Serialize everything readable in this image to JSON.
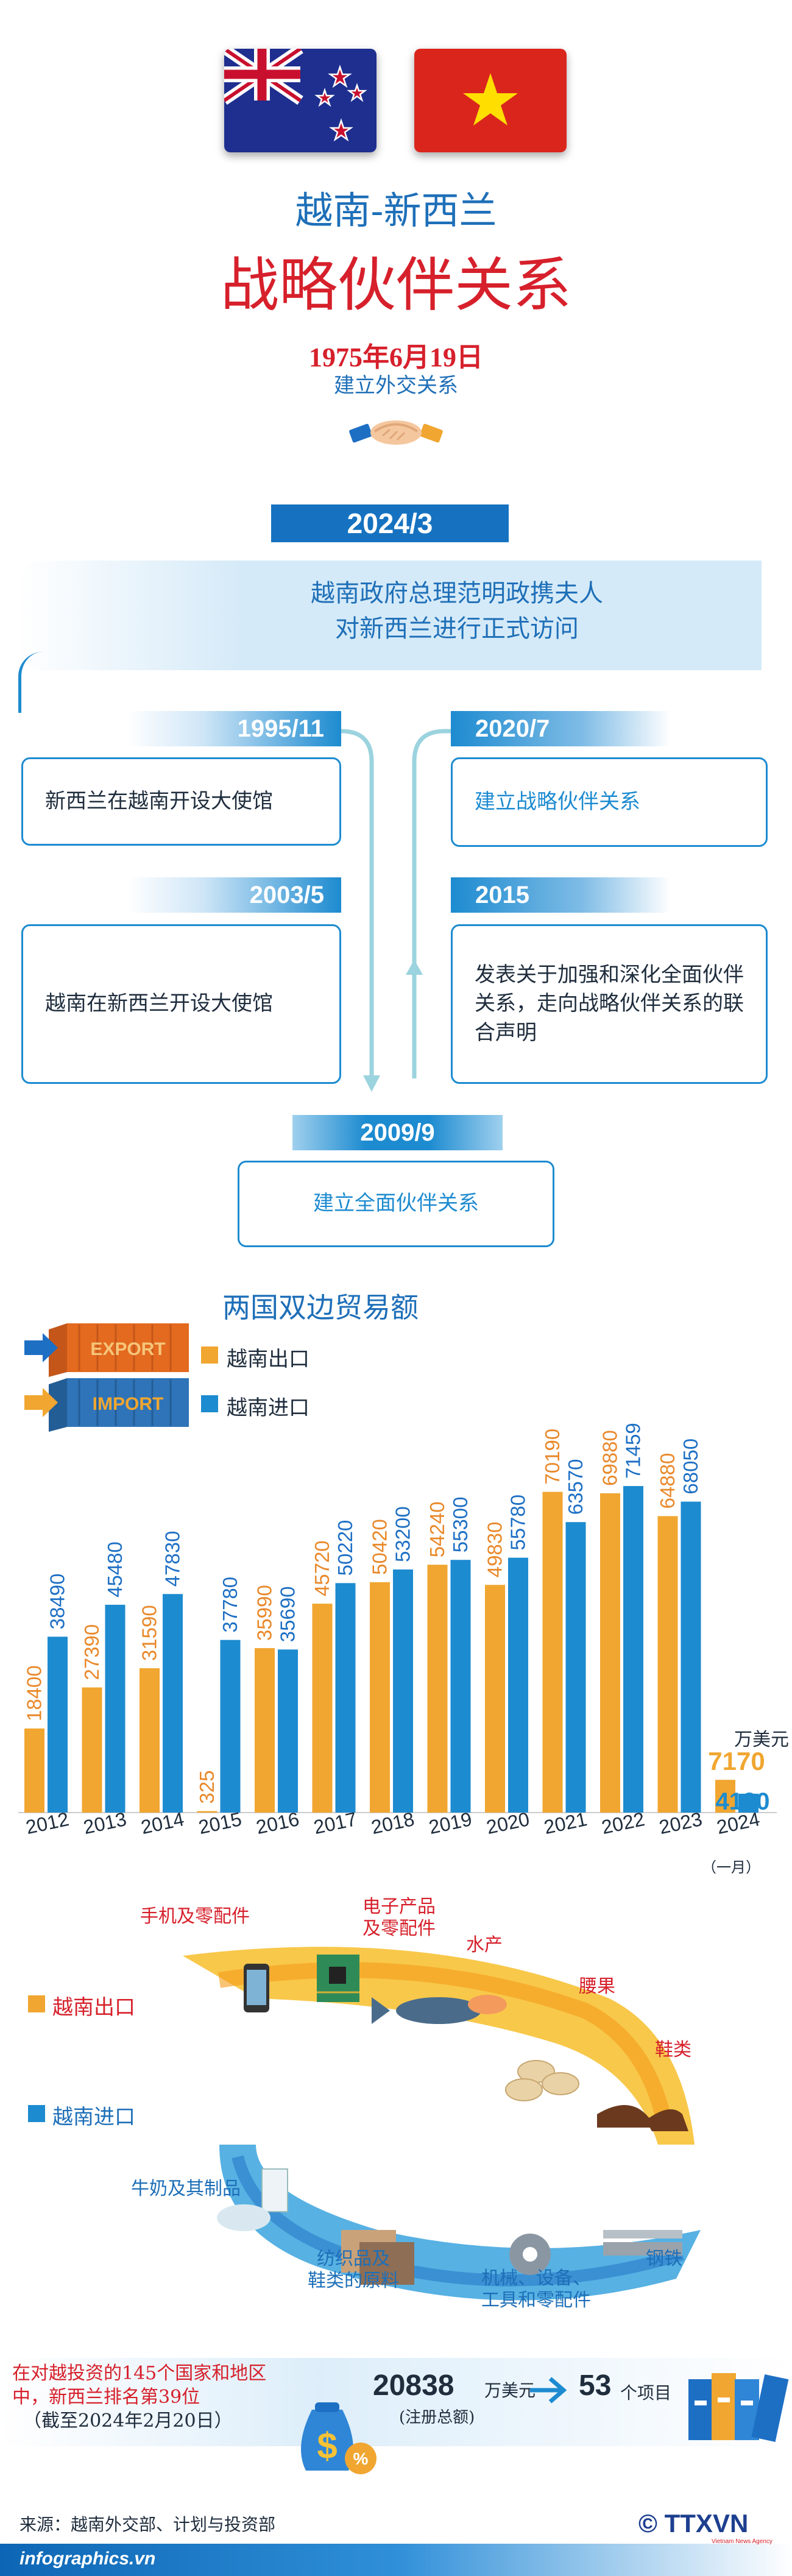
{
  "header": {
    "title_line1": "越南-新西兰",
    "title_line2": "战略伙伴关系",
    "date": "1975年6月19日",
    "date_sub": "建立外交关系"
  },
  "visit": {
    "year": "2024/3",
    "text_line1": "越南政府总理范明政携夫人",
    "text_line2": "对新西兰进行正式访问"
  },
  "timeline": [
    {
      "year": "1995/11",
      "text": "新西兰在越南开设大使馆"
    },
    {
      "year": "2003/5",
      "text": "越南在新西兰开设大使馆"
    },
    {
      "year": "2009/9",
      "text": "建立全面伙伴关系"
    },
    {
      "year": "2015",
      "text": "发表关于加强和深化全面伙伴关系，走向战略伙伴关系的联合声明"
    },
    {
      "year": "2020/7",
      "text": "建立战略伙伴关系"
    }
  ],
  "chart_data": {
    "type": "bar",
    "title": "两国双边贸易额",
    "categories": [
      "2012",
      "2013",
      "2014",
      "2015",
      "2016",
      "2017",
      "2018",
      "2019",
      "2020",
      "2021",
      "2022",
      "2023",
      "2024"
    ],
    "category_note": "（一月）",
    "series": [
      {
        "name": "越南出口",
        "color": "#f0a630",
        "values": [
          18400,
          27390,
          31590,
          325,
          35990,
          45720,
          50420,
          54240,
          49830,
          70190,
          69880,
          64880,
          7170
        ]
      },
      {
        "name": "越南进口",
        "color": "#1d8bd0",
        "values": [
          38490,
          45480,
          47830,
          37780,
          35690,
          50220,
          53200,
          55300,
          55780,
          63570,
          71459,
          68050,
          4130
        ]
      }
    ],
    "unit": "万美元",
    "ylim": [
      0,
      80000
    ],
    "export_badge": "EXPORT",
    "import_badge": "IMPORT"
  },
  "products": {
    "export_label": "越南出口",
    "import_label": "越南进口",
    "exports": [
      "手机及零配件",
      "电子产品\n及零配件",
      "水产",
      "腰果",
      "鞋类"
    ],
    "imports": [
      "牛奶及其制品",
      "纺织品及\n鞋类的原料",
      "机械、设备、\n工具和零配件",
      "钢铁"
    ]
  },
  "investment": {
    "text_line1": "在对越投资的145个国家和地区",
    "text_line2": "中，新西兰排名第39位",
    "text_line3": "（截至2024年2月20日）",
    "amount": "20838",
    "amount_unit": "万美元",
    "amount_sub": "(注册总额)",
    "projects": "53",
    "projects_unit": "个项目"
  },
  "footer": {
    "source": "来源：越南外交部、计划与投资部",
    "site": "infographics.vn",
    "agency": "TTXVN",
    "agency_sub": "Vietnam News Agency"
  },
  "colors": {
    "accent_red": "#d6202b",
    "accent_blue": "#1d8bd0",
    "export_orange": "#f0a630"
  }
}
